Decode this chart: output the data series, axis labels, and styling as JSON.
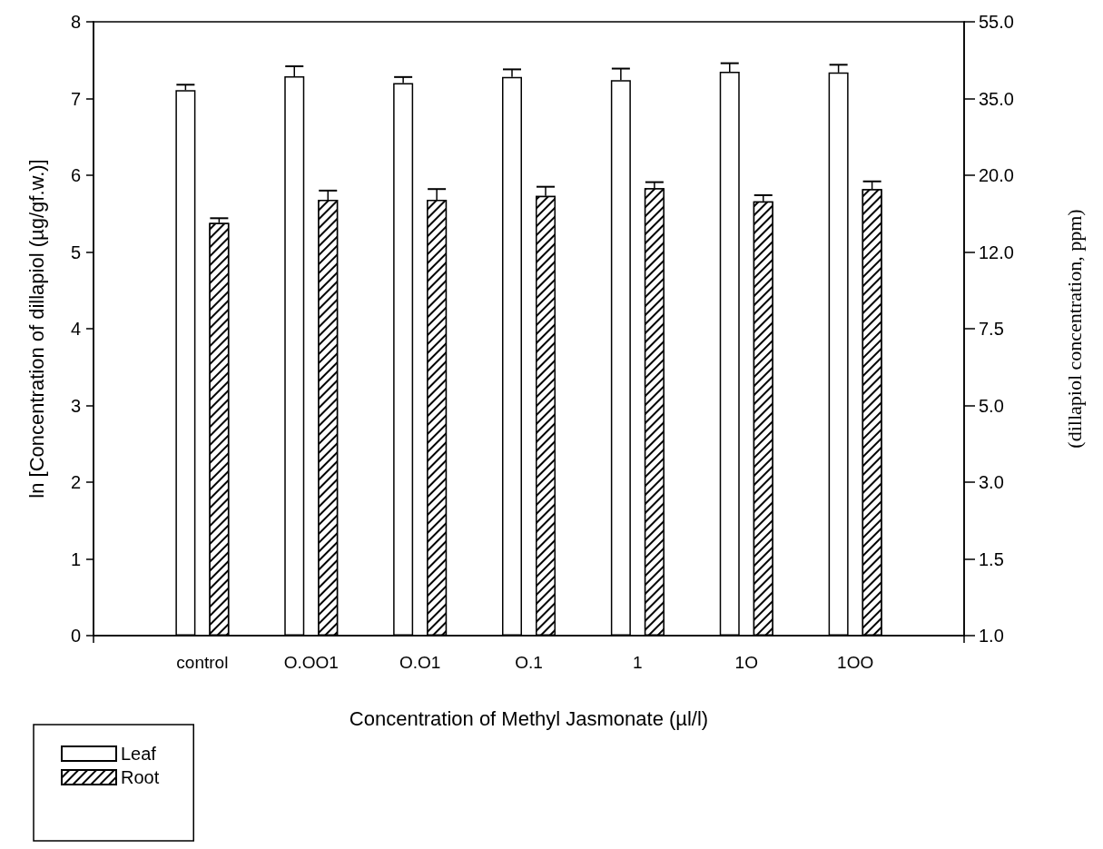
{
  "chart_data": {
    "type": "bar",
    "xlabel": "Concentration of Methyl Jasmonate (µl/l)",
    "ylabel": "ln [Concentration of dillapiol (µg/gf.w.)]",
    "y2label": "(dillapiol concentration, ppm)",
    "categories": [
      null,
      "control",
      "O.OO1",
      "O.O1",
      "O.1",
      "1",
      "1O",
      "1OO",
      null
    ],
    "series": [
      {
        "name": "Leaf",
        "color": "#ffffff",
        "values": [
          null,
          7.11,
          7.29,
          7.2,
          7.28,
          7.24,
          7.35,
          7.34,
          null
        ],
        "errors": [
          null,
          [
            7.11,
            7.18
          ],
          [
            7.29,
            7.42
          ],
          [
            7.2,
            7.28
          ],
          [
            7.28,
            7.38
          ],
          [
            7.24,
            7.39
          ],
          [
            7.35,
            7.46
          ],
          [
            7.34,
            7.44
          ],
          null
        ]
      },
      {
        "name": "Root",
        "color": "#000000",
        "values": [
          null,
          5.38,
          5.68,
          5.68,
          5.73,
          5.83,
          5.66,
          5.82,
          null
        ],
        "errors": [
          null,
          [
            5.38,
            5.44
          ],
          [
            5.68,
            5.8
          ],
          [
            5.68,
            5.82
          ],
          [
            5.73,
            5.85
          ],
          [
            5.83,
            5.91
          ],
          [
            5.66,
            5.74
          ],
          [
            5.82,
            5.92
          ],
          null
        ]
      }
    ],
    "ylim": [
      0,
      8
    ],
    "yticks": [
      0,
      1,
      2,
      3,
      4,
      5,
      6,
      7,
      8
    ],
    "y2_categories": [
      "55.0",
      "35.0",
      "20.0",
      "12.0",
      "7.5",
      "5.0",
      "3.0",
      "1.5",
      "1.0"
    ],
    "legend": "bottom left",
    "grid": false
  }
}
